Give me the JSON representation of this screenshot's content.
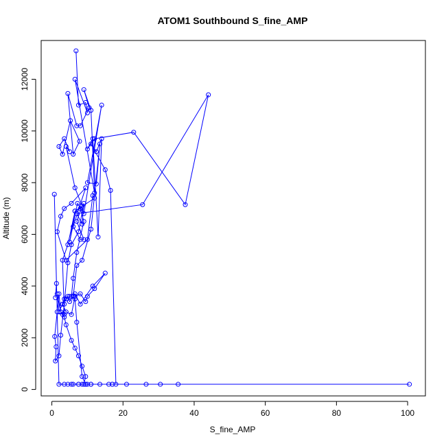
{
  "chart_data": {
    "type": "line",
    "title": "ATOM1 Southbound S_fine_AMP",
    "xlabel": "S_fine_AMP",
    "ylabel": "Altitude (m)",
    "xlim": [
      -3,
      105
    ],
    "ylim": [
      -250,
      13500
    ],
    "xticks": [
      0,
      20,
      40,
      60,
      80,
      100
    ],
    "yticks": [
      0,
      2000,
      4000,
      6000,
      8000,
      10000,
      12000
    ],
    "grid": false,
    "legend": "none",
    "series_color": "#0000ff",
    "series": [
      {
        "marker": "open-circle",
        "x": [
          6.8,
          7.5,
          9.5,
          10.0,
          6.5,
          12.0,
          11.0,
          9.0,
          10.5,
          8.0,
          7.0,
          4.5,
          6.0,
          7.8,
          5.2,
          3.0,
          2.0,
          3.5,
          5.0,
          4.0,
          6.5,
          8.5,
          7.0,
          9.0,
          8.0,
          6.0,
          9.5,
          5.5,
          3.5,
          2.5,
          1.5,
          4.0,
          10.0,
          11.5,
          12.0,
          6.5,
          5.0,
          7.2,
          9.0,
          14.0,
          10.0,
          12.5,
          13.5,
          11.0,
          8.5,
          7.0,
          6.0,
          5.0,
          4.5,
          3.5,
          3.0,
          4.0,
          5.5,
          6.5,
          8.0,
          9.5,
          10.0,
          12.0,
          15.0,
          11.5,
          8.0,
          6.5,
          5.0,
          4.0,
          3.0,
          2.0,
          1.5,
          2.5,
          3.5,
          3.0,
          4.5,
          6.5,
          8.0,
          9.0,
          7.0,
          6.0,
          5.5,
          6.5,
          7.0,
          8.5,
          9.5,
          11.0,
          17.0,
          21.0,
          26.5,
          30.5,
          35.5,
          100.5,
          5.5,
          7.5,
          9.5,
          10.0,
          11.0,
          13.5,
          16.0,
          17.0,
          18.0,
          16.5,
          15.0,
          11.0,
          12.5,
          14.0,
          13.0,
          11.5,
          10.0,
          12.0,
          23.0,
          37.5,
          44.0,
          25.5,
          7.0,
          8.5,
          9.0,
          7.5,
          5.5,
          4.5,
          3.5,
          2.5,
          2.0,
          1.0,
          1.2,
          0.8,
          1.5,
          2.0,
          2.5,
          3.0,
          3.5,
          4.0,
          5.5,
          6.5,
          7.5,
          8.5,
          9.5,
          9.0,
          8.5,
          7.5,
          6.0,
          4.5,
          3.5,
          2.0,
          0.7,
          1.3,
          1.0
        ],
        "y": [
          13100,
          11000,
          11100,
          10700,
          12000,
          7600,
          10800,
          11600,
          10900,
          10200,
          10200,
          11450,
          9100,
          9600,
          10400,
          9100,
          9400,
          9700,
          9200,
          9400,
          7800,
          7100,
          6500,
          5800,
          5800,
          6300,
          7800,
          7200,
          7000,
          6700,
          6100,
          5000,
          5800,
          7500,
          7400,
          6900,
          5700,
          7200,
          6800,
          11000,
          8000,
          7950,
          9500,
          6200,
          5000,
          4800,
          3600,
          3400,
          3600,
          3500,
          3300,
          3000,
          2900,
          3600,
          3700,
          3400,
          3600,
          3900,
          4500,
          4000,
          3300,
          3700,
          3600,
          3500,
          3300,
          3000,
          3700,
          3000,
          2900,
          5000,
          5600,
          6900,
          7000,
          6500,
          5300,
          4300,
          3600,
          3500,
          2600,
          500,
          200,
          200,
          200,
          200,
          200,
          200,
          200,
          200,
          200,
          200,
          200,
          200,
          200,
          200,
          200,
          200,
          200,
          7700,
          8500,
          9500,
          9200,
          9700,
          5900,
          9700,
          9300,
          9700,
          9950,
          7150,
          11400,
          7150,
          6800,
          6400,
          7200,
          6100,
          5600,
          4900,
          3300,
          2100,
          1300,
          1100,
          1650,
          2050,
          3000,
          3700,
          3000,
          2900,
          2800,
          2500,
          1900,
          1600,
          1300,
          900,
          500,
          200,
          200,
          200,
          200,
          200,
          200,
          200,
          7550,
          4100,
          3550
        ]
      }
    ]
  }
}
